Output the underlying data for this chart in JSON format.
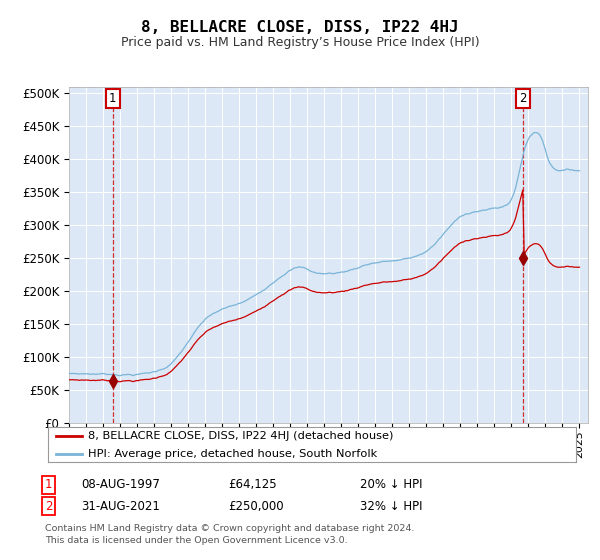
{
  "title": "8, BELLACRE CLOSE, DISS, IP22 4HJ",
  "subtitle": "Price paid vs. HM Land Registry’s House Price Index (HPI)",
  "sale1_date": 1997.58,
  "sale1_price": 64125,
  "sale1_label": "1",
  "sale2_date": 2021.67,
  "sale2_price": 250000,
  "sale2_label": "2",
  "hpi_color": "#7ab4d8",
  "price_color": "#cc0000",
  "marker_color": "#990000",
  "plot_bg": "#dce8f5",
  "ylim_min": 0,
  "ylim_max": 510000,
  "xlim_start": 1995.0,
  "xlim_end": 2025.5,
  "yticks": [
    0,
    50000,
    100000,
    150000,
    200000,
    250000,
    300000,
    350000,
    400000,
    450000,
    500000
  ],
  "ytick_labels": [
    "£0",
    "£50K",
    "£100K",
    "£150K",
    "£200K",
    "£250K",
    "£300K",
    "£350K",
    "£400K",
    "£450K",
    "£500K"
  ],
  "legend_label1": "8, BELLACRE CLOSE, DISS, IP22 4HJ (detached house)",
  "legend_label2": "HPI: Average price, detached house, South Norfolk",
  "footer1": "Contains HM Land Registry data © Crown copyright and database right 2024.",
  "footer2": "This data is licensed under the Open Government Licence v3.0.",
  "table_row1": [
    "1",
    "08-AUG-1997",
    "£64,125",
    "20% ↓ HPI"
  ],
  "table_row2": [
    "2",
    "31-AUG-2021",
    "£250,000",
    "32% ↓ HPI"
  ]
}
